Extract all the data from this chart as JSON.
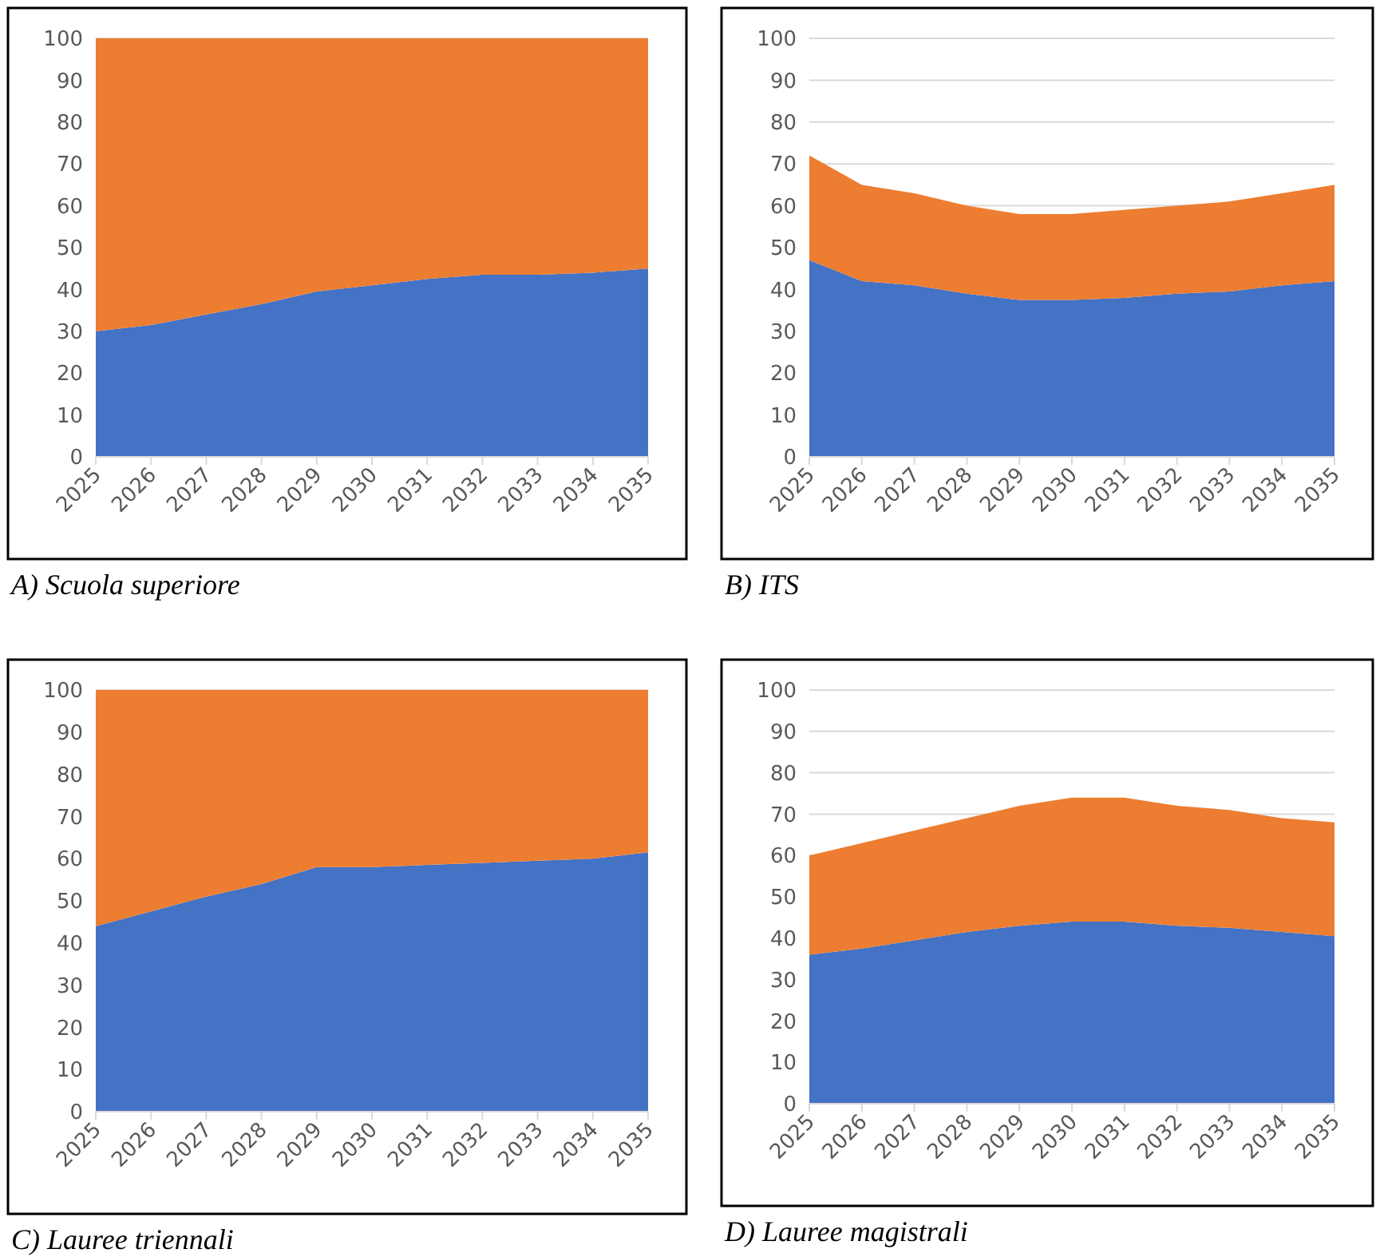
{
  "chart_data": [
    {
      "type": "area",
      "title": "A) Scuola superiore",
      "stacked": true,
      "grid": "y",
      "categories": [
        "2025",
        "2026",
        "2027",
        "2028",
        "2029",
        "2030",
        "2031",
        "2032",
        "2033",
        "2034",
        "2035"
      ],
      "ylim": [
        0,
        100
      ],
      "yticks": [
        0,
        10,
        20,
        30,
        40,
        50,
        60,
        70,
        80,
        90,
        100
      ],
      "series": [
        {
          "color": "#4472c4",
          "values": [
            30,
            31.5,
            34,
            36.5,
            39.5,
            41,
            42.5,
            43.5,
            43.5,
            44,
            45
          ]
        },
        {
          "color": "#ed7d31",
          "values": [
            70,
            68.5,
            66,
            63.5,
            60.5,
            59,
            57.5,
            56.5,
            56.5,
            56,
            55
          ]
        }
      ]
    },
    {
      "type": "area",
      "title": "B) ITS",
      "stacked": true,
      "grid": "y",
      "categories": [
        "2025",
        "2026",
        "2027",
        "2028",
        "2029",
        "2030",
        "2031",
        "2032",
        "2033",
        "2034",
        "2035"
      ],
      "ylim": [
        0,
        100
      ],
      "yticks": [
        0,
        10,
        20,
        30,
        40,
        50,
        60,
        70,
        80,
        90,
        100
      ],
      "series": [
        {
          "color": "#4472c4",
          "values": [
            47,
            42,
            41,
            39,
            37.5,
            37.5,
            38,
            39,
            39.5,
            41,
            42
          ]
        },
        {
          "color": "#ed7d31",
          "values": [
            25,
            23,
            22,
            21,
            20.5,
            20.5,
            21,
            21,
            21.5,
            22,
            23
          ]
        }
      ]
    },
    {
      "type": "area",
      "title": "C) Lauree triennali",
      "stacked": true,
      "grid": "y",
      "categories": [
        "2025",
        "2026",
        "2027",
        "2028",
        "2029",
        "2030",
        "2031",
        "2032",
        "2033",
        "2034",
        "2035"
      ],
      "ylim": [
        0,
        100
      ],
      "yticks": [
        0,
        10,
        20,
        30,
        40,
        50,
        60,
        70,
        80,
        90,
        100
      ],
      "series": [
        {
          "color": "#4472c4",
          "values": [
            44,
            47.5,
            51,
            54,
            58,
            58,
            58.5,
            59,
            59.5,
            60,
            61.5
          ]
        },
        {
          "color": "#ed7d31",
          "values": [
            56,
            52.5,
            49,
            46,
            42,
            42,
            41.5,
            41,
            40.5,
            40,
            38.5
          ]
        }
      ]
    },
    {
      "type": "area",
      "title": "D) Lauree magistrali",
      "stacked": true,
      "grid": "y",
      "categories": [
        "2025",
        "2026",
        "2027",
        "2028",
        "2029",
        "2030",
        "2031",
        "2032",
        "2033",
        "2034",
        "2035"
      ],
      "ylim": [
        0,
        100
      ],
      "yticks": [
        0,
        10,
        20,
        30,
        40,
        50,
        60,
        70,
        80,
        90,
        100
      ],
      "series": [
        {
          "color": "#4472c4",
          "values": [
            36,
            37.5,
            39.5,
            41.5,
            43,
            44,
            44,
            43,
            42.5,
            41.5,
            40.5
          ]
        },
        {
          "color": "#ed7d31",
          "values": [
            24,
            25.5,
            26.5,
            27.5,
            29,
            30,
            30,
            29,
            28.5,
            27.5,
            27.5
          ]
        }
      ]
    }
  ]
}
